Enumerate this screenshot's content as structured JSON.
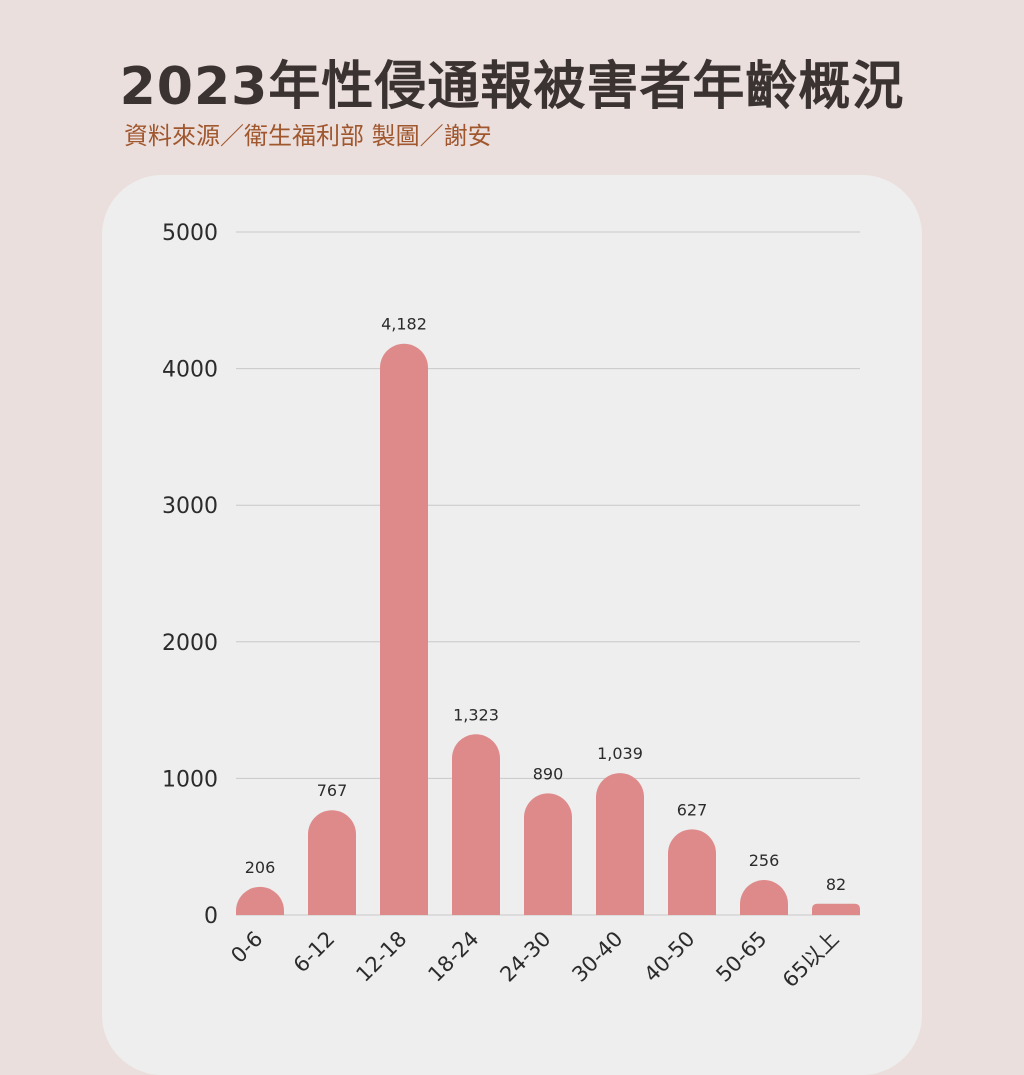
{
  "header": {
    "title": "2023年性侵通報被害者年齡概況",
    "subtitle": "資料來源／衛生福利部 製圖／謝安"
  },
  "colors": {
    "background": "#ebdfdd",
    "card": "#eeeeee",
    "bar": "#df8a8a",
    "title": "#3a3332",
    "subtitle": "#a0572e",
    "grid": "#c8c8c8"
  },
  "chart_data": {
    "type": "bar",
    "title": "2023年性侵通報被害者年齡概況",
    "categories": [
      "0-6",
      "6-12",
      "12-18",
      "18-24",
      "24-30",
      "30-40",
      "40-50",
      "50-65",
      "65以上"
    ],
    "values": [
      206,
      767,
      4182,
      1323,
      890,
      1039,
      627,
      256,
      82
    ],
    "value_labels": [
      "206",
      "767",
      "4,182",
      "1,323",
      "890",
      "1,039",
      "627",
      "256",
      "82"
    ],
    "ylim": [
      0,
      5000
    ],
    "yticks": [
      0,
      1000,
      2000,
      3000,
      4000,
      5000
    ],
    "grid": true,
    "xlabel": "",
    "ylabel": ""
  }
}
